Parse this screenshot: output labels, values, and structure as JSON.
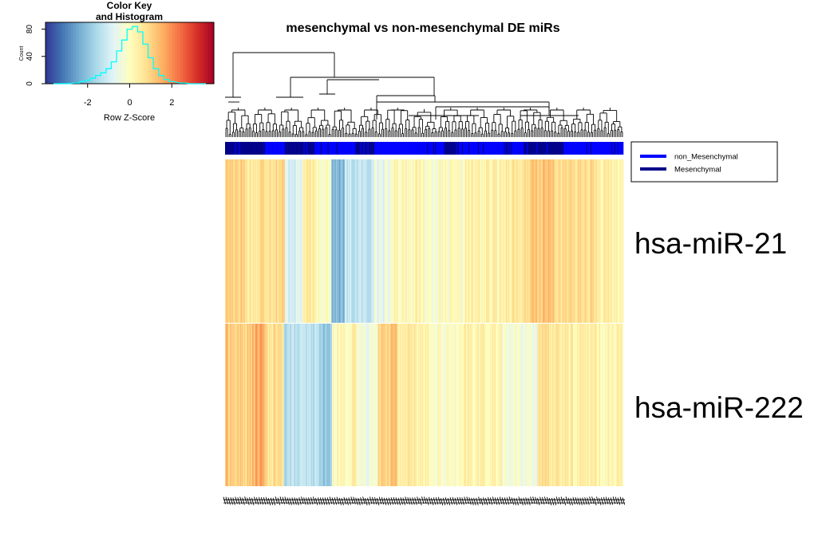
{
  "chart_data": {
    "type": "heatmap",
    "title": "mesenchymal vs non-mesenchymal DE miRs",
    "rows": [
      "hsa-miR-21",
      "hsa-miR-222"
    ],
    "legend": {
      "placement": "right",
      "entries": [
        {
          "label": "non_Mesenchymal",
          "color": "#0000ff"
        },
        {
          "label": "Mesenchymal",
          "color": "#00008b"
        }
      ]
    },
    "color_key": {
      "title_line1": "Color Key",
      "title_line2": "and Histogram",
      "xlabel": "Row Z-Score",
      "ylabel": "Count",
      "xticks": [
        -2,
        0,
        2
      ],
      "yticks": [
        0,
        40,
        80
      ],
      "xlim": [
        -4,
        4
      ],
      "ylim": [
        0,
        90
      ],
      "palette": [
        "#313695",
        "#4575b4",
        "#74add1",
        "#abd9e9",
        "#e0f3f8",
        "#ffffbf",
        "#fee090",
        "#fdae61",
        "#f46d43",
        "#d73027",
        "#a50026"
      ],
      "histogram_color": "#00ffff",
      "histogram": [
        {
          "x": -3.5,
          "count": 0
        },
        {
          "x": -3.0,
          "count": 0
        },
        {
          "x": -2.5,
          "count": 1
        },
        {
          "x": -2.25,
          "count": 3
        },
        {
          "x": -2.0,
          "count": 5
        },
        {
          "x": -1.75,
          "count": 8
        },
        {
          "x": -1.5,
          "count": 12
        },
        {
          "x": -1.25,
          "count": 16
        },
        {
          "x": -1.0,
          "count": 22
        },
        {
          "x": -0.75,
          "count": 32
        },
        {
          "x": -0.5,
          "count": 48
        },
        {
          "x": -0.25,
          "count": 64
        },
        {
          "x": 0.0,
          "count": 80
        },
        {
          "x": 0.25,
          "count": 84
        },
        {
          "x": 0.5,
          "count": 76
        },
        {
          "x": 0.75,
          "count": 58
        },
        {
          "x": 1.0,
          "count": 38
        },
        {
          "x": 1.25,
          "count": 22
        },
        {
          "x": 1.5,
          "count": 12
        },
        {
          "x": 1.75,
          "count": 6
        },
        {
          "x": 2.0,
          "count": 3
        },
        {
          "x": 2.5,
          "count": 1
        },
        {
          "x": 3.0,
          "count": 0
        },
        {
          "x": 3.5,
          "count": 0
        }
      ]
    },
    "column_zscore_segments": [
      {
        "row": "hsa-miR-21",
        "segments": [
          {
            "n": 18,
            "z": 1.1
          },
          {
            "n": 14,
            "z": 0.6
          },
          {
            "n": 22,
            "z": 0.9
          },
          {
            "n": 16,
            "z": -0.8
          },
          {
            "n": 10,
            "z": 0.4
          },
          {
            "n": 16,
            "z": 0.1
          },
          {
            "n": 12,
            "z": -2.2
          },
          {
            "n": 24,
            "z": -1.3
          },
          {
            "n": 18,
            "z": -0.6
          },
          {
            "n": 30,
            "z": 0.2
          },
          {
            "n": 36,
            "z": -0.1
          },
          {
            "n": 36,
            "z": 0.3
          },
          {
            "n": 24,
            "z": 0.6
          },
          {
            "n": 22,
            "z": 1.2
          },
          {
            "n": 38,
            "z": 0.8
          },
          {
            "n": 24,
            "z": 0.3
          }
        ]
      },
      {
        "row": "hsa-miR-222",
        "segments": [
          {
            "n": 6,
            "z": 1.3
          },
          {
            "n": 20,
            "z": 1.0
          },
          {
            "n": 12,
            "z": 1.6
          },
          {
            "n": 18,
            "z": 0.7
          },
          {
            "n": 36,
            "z": -1.4
          },
          {
            "n": 10,
            "z": -2.0
          },
          {
            "n": 24,
            "z": 0.2
          },
          {
            "n": 20,
            "z": -0.3
          },
          {
            "n": 18,
            "z": 1.2
          },
          {
            "n": 30,
            "z": 0.5
          },
          {
            "n": 34,
            "z": -0.1
          },
          {
            "n": 36,
            "z": 0.3
          },
          {
            "n": 34,
            "z": -0.3
          },
          {
            "n": 24,
            "z": 0.6
          },
          {
            "n": 32,
            "z": 0.4
          },
          {
            "n": 26,
            "z": 0.2
          }
        ]
      }
    ],
    "sample_class_segments": [
      {
        "n": 40,
        "class": "Mesenchymal"
      },
      {
        "n": 20,
        "class": "non_Mesenchymal"
      },
      {
        "n": 30,
        "class": "Mesenchymal"
      },
      {
        "n": 40,
        "class": "non_Mesenchymal"
      },
      {
        "n": 20,
        "class": "Mesenchymal"
      },
      {
        "n": 70,
        "class": "non_Mesenchymal"
      },
      {
        "n": 15,
        "class": "Mesenchymal"
      },
      {
        "n": 65,
        "class": "non_Mesenchymal"
      },
      {
        "n": 40,
        "class": "Mesenchymal"
      },
      {
        "n": 60,
        "class": "non_Mesenchymal"
      }
    ],
    "grid": false
  }
}
